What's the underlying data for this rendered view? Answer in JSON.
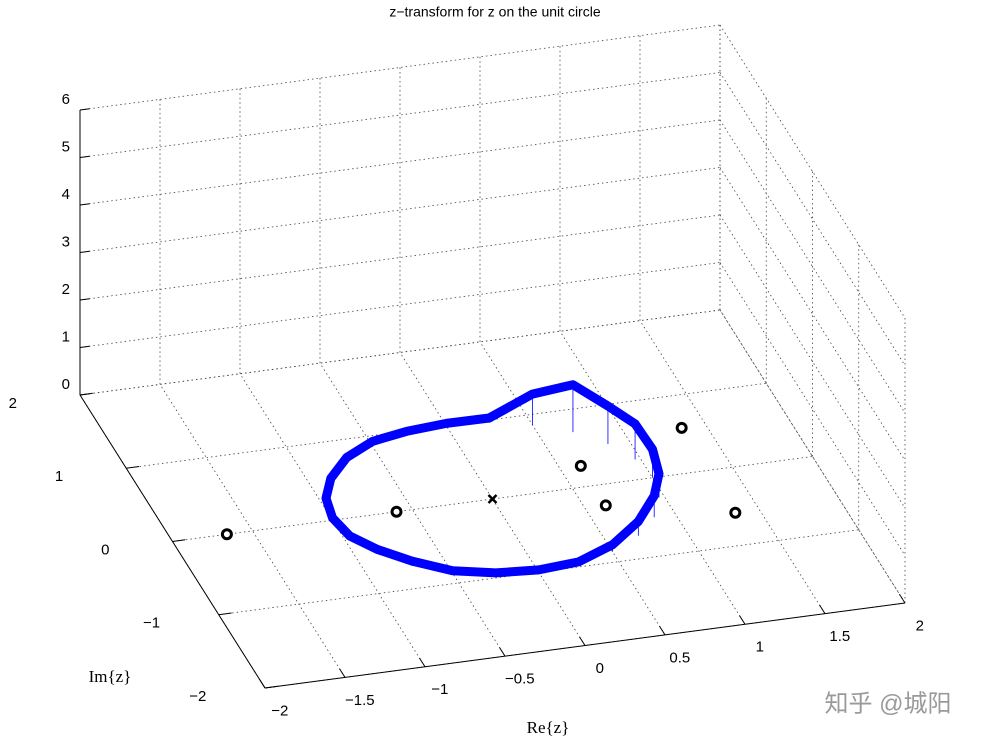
{
  "chart_data": {
    "type": "surface-on-circle",
    "title": "z−transform for z on the unit circle",
    "xlabel": "Re{z}",
    "ylabel": "Im{z}",
    "xlim": [
      -2,
      2
    ],
    "xticks": [
      {
        "value": -2,
        "label": "−2"
      },
      {
        "value": -1.5,
        "label": "−1.5"
      },
      {
        "value": -1,
        "label": "−1"
      },
      {
        "value": -0.5,
        "label": "−0.5"
      },
      0,
      0.5,
      1,
      1.5,
      2
    ],
    "ylim": [
      -2,
      2
    ],
    "yticks": [
      {
        "value": -2,
        "label": "−2"
      },
      {
        "value": -1,
        "label": "−1"
      },
      0,
      1,
      2
    ],
    "zlim": [
      0,
      6
    ],
    "zticks": [
      0,
      1,
      2,
      3,
      4,
      5,
      6
    ],
    "grid": true,
    "color": "#0000ff",
    "theta_deg": [
      0,
      15,
      30,
      45,
      60,
      75,
      90,
      105,
      120,
      135,
      150,
      165,
      180,
      195,
      210,
      225,
      240,
      255,
      270,
      285,
      300,
      315,
      330,
      345
    ],
    "magnitude": [
      0.6,
      0.75,
      0.8,
      1.0,
      0.65,
      0.1,
      0.05,
      0.05,
      0.1,
      0.1,
      0.05,
      0.05,
      0.05,
      0.05,
      0.1,
      0.1,
      0.05,
      0.05,
      0.05,
      0.05,
      0.15,
      0.3,
      0.45,
      0.5
    ],
    "zeros": {
      "re": [
        -1.66,
        -0.6,
        0.63,
        0.63,
        1.35,
        1.35
      ],
      "im": [
        0,
        0,
        0.27,
        -0.27,
        0.58,
        -0.58
      ]
    },
    "poles": {
      "re": [
        0
      ],
      "im": [
        0
      ]
    }
  },
  "watermark": "知乎 @城阳"
}
